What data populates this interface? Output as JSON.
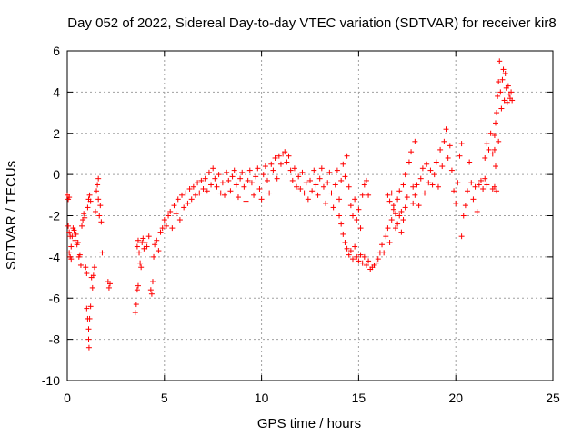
{
  "chart_data": {
    "type": "scatter",
    "title": "Day 052 of 2022, Sidereal Day-to-day VTEC variation (SDTVAR) for receiver kir8",
    "xlabel": "GPS time / hours",
    "ylabel": "SDTVAR / TECUs",
    "xlim": [
      0,
      25
    ],
    "ylim": [
      -10,
      6
    ],
    "xticks": [
      0,
      5,
      10,
      15,
      20,
      25
    ],
    "yticks": [
      -10,
      -8,
      -6,
      -4,
      -2,
      0,
      2,
      4,
      6
    ],
    "xtick_labels": [
      "0",
      "5",
      "10",
      "15",
      "20",
      "25"
    ],
    "ytick_labels": [
      "-10",
      "-8",
      "-6",
      "-4",
      "-2",
      "0",
      "2",
      "4",
      "6"
    ],
    "grid": true,
    "marker": "+",
    "marker_color": "#ff0000",
    "series": [
      {
        "name": "SDTVAR",
        "points": [
          [
            0.0,
            -1.0
          ],
          [
            0.05,
            -1.2
          ],
          [
            0.1,
            -1.1
          ],
          [
            0.05,
            -2.5
          ],
          [
            0.1,
            -2.8
          ],
          [
            0.15,
            -3.0
          ],
          [
            0.2,
            -3.5
          ],
          [
            0.1,
            -3.8
          ],
          [
            0.15,
            -4.0
          ],
          [
            0.2,
            -4.1
          ],
          [
            0.25,
            -3.0
          ],
          [
            0.3,
            -2.6
          ],
          [
            0.35,
            -2.7
          ],
          [
            0.4,
            -3.2
          ],
          [
            0.45,
            -2.9
          ],
          [
            0.5,
            -3.4
          ],
          [
            0.55,
            -3.3
          ],
          [
            0.6,
            -4.0
          ],
          [
            0.65,
            -3.9
          ],
          [
            0.7,
            -4.4
          ],
          [
            0.75,
            -2.5
          ],
          [
            0.8,
            -2.2
          ],
          [
            0.85,
            -1.9
          ],
          [
            0.9,
            -2.1
          ],
          [
            0.95,
            -4.5
          ],
          [
            1.0,
            -4.8
          ],
          [
            1.0,
            -6.5
          ],
          [
            1.05,
            -7.0
          ],
          [
            1.1,
            -7.5
          ],
          [
            1.1,
            -8.0
          ],
          [
            1.12,
            -8.4
          ],
          [
            1.15,
            -7.0
          ],
          [
            1.2,
            -6.4
          ],
          [
            1.05,
            -1.6
          ],
          [
            1.1,
            -1.2
          ],
          [
            1.15,
            -1.0
          ],
          [
            1.2,
            -1.3
          ],
          [
            1.25,
            -5.0
          ],
          [
            1.3,
            -5.5
          ],
          [
            1.35,
            -4.9
          ],
          [
            1.4,
            -4.5
          ],
          [
            1.45,
            -1.8
          ],
          [
            1.5,
            -0.8
          ],
          [
            1.55,
            -0.5
          ],
          [
            1.6,
            -0.2
          ],
          [
            1.6,
            -1.2
          ],
          [
            1.65,
            -2.0
          ],
          [
            1.7,
            -1.5
          ],
          [
            1.75,
            -2.3
          ],
          [
            1.8,
            -3.8
          ],
          [
            2.1,
            -5.2
          ],
          [
            2.15,
            -5.5
          ],
          [
            2.2,
            -5.3
          ],
          [
            3.5,
            -6.7
          ],
          [
            3.55,
            -6.3
          ],
          [
            3.6,
            -5.6
          ],
          [
            3.65,
            -5.4
          ],
          [
            3.6,
            -3.5
          ],
          [
            3.65,
            -3.2
          ],
          [
            3.7,
            -3.8
          ],
          [
            3.75,
            -4.3
          ],
          [
            3.8,
            -4.5
          ],
          [
            3.85,
            -3.3
          ],
          [
            3.9,
            -3.1
          ],
          [
            3.95,
            -3.6
          ],
          [
            4.0,
            -3.3
          ],
          [
            4.1,
            -3.5
          ],
          [
            4.2,
            -3.0
          ],
          [
            4.3,
            -5.6
          ],
          [
            4.35,
            -5.8
          ],
          [
            4.4,
            -5.2
          ],
          [
            4.45,
            -4.0
          ],
          [
            4.5,
            -3.4
          ],
          [
            4.6,
            -3.2
          ],
          [
            4.7,
            -3.7
          ],
          [
            4.8,
            -2.8
          ],
          [
            4.9,
            -2.6
          ],
          [
            5.0,
            -2.2
          ],
          [
            5.1,
            -2.5
          ],
          [
            5.2,
            -2.0
          ],
          [
            5.3,
            -1.8
          ],
          [
            5.4,
            -2.6
          ],
          [
            5.5,
            -1.5
          ],
          [
            5.6,
            -1.9
          ],
          [
            5.7,
            -1.2
          ],
          [
            5.8,
            -2.2
          ],
          [
            5.9,
            -1.0
          ],
          [
            6.0,
            -1.6
          ],
          [
            6.1,
            -0.9
          ],
          [
            6.2,
            -1.4
          ],
          [
            6.3,
            -0.7
          ],
          [
            6.4,
            -1.2
          ],
          [
            6.5,
            -0.6
          ],
          [
            6.6,
            -1.0
          ],
          [
            6.7,
            -0.4
          ],
          [
            6.8,
            -0.9
          ],
          [
            6.9,
            -0.3
          ],
          [
            7.0,
            -0.7
          ],
          [
            7.1,
            -0.2
          ],
          [
            7.2,
            -0.8
          ],
          [
            7.3,
            0.1
          ],
          [
            7.4,
            -0.5
          ],
          [
            7.5,
            0.3
          ],
          [
            7.6,
            -0.2
          ],
          [
            7.7,
            -0.6
          ],
          [
            7.8,
            0.0
          ],
          [
            7.9,
            -0.9
          ],
          [
            8.0,
            -0.4
          ],
          [
            8.1,
            -1.0
          ],
          [
            8.2,
            0.1
          ],
          [
            8.3,
            -0.3
          ],
          [
            8.4,
            -0.8
          ],
          [
            8.5,
            -0.1
          ],
          [
            8.6,
            0.2
          ],
          [
            8.7,
            -0.5
          ],
          [
            8.8,
            -1.1
          ],
          [
            8.9,
            -0.2
          ],
          [
            9.0,
            0.1
          ],
          [
            9.1,
            -0.6
          ],
          [
            9.2,
            -1.3
          ],
          [
            9.3,
            -0.3
          ],
          [
            9.4,
            0.2
          ],
          [
            9.5,
            -0.4
          ],
          [
            9.6,
            -1.0
          ],
          [
            9.7,
            -0.1
          ],
          [
            9.8,
            0.3
          ],
          [
            9.9,
            -0.7
          ],
          [
            10.0,
            -1.2
          ],
          [
            10.1,
            0.0
          ],
          [
            10.2,
            0.4
          ],
          [
            10.3,
            -0.3
          ],
          [
            10.4,
            -0.9
          ],
          [
            10.5,
            0.5
          ],
          [
            10.6,
            0.2
          ],
          [
            10.7,
            0.8
          ],
          [
            10.8,
            -0.2
          ],
          [
            10.9,
            0.9
          ],
          [
            11.0,
            0.5
          ],
          [
            11.1,
            1.0
          ],
          [
            11.2,
            1.1
          ],
          [
            11.3,
            0.6
          ],
          [
            11.4,
            0.9
          ],
          [
            11.5,
            0.2
          ],
          [
            11.6,
            -0.3
          ],
          [
            11.7,
            0.3
          ],
          [
            11.8,
            -0.6
          ],
          [
            11.9,
            -0.1
          ],
          [
            12.0,
            -0.7
          ],
          [
            12.1,
            0.1
          ],
          [
            12.2,
            -0.9
          ],
          [
            12.3,
            -0.4
          ],
          [
            12.4,
            -1.2
          ],
          [
            12.5,
            -0.3
          ],
          [
            12.6,
            -0.8
          ],
          [
            12.7,
            0.2
          ],
          [
            12.8,
            -0.5
          ],
          [
            12.9,
            -1.0
          ],
          [
            13.0,
            -0.2
          ],
          [
            13.1,
            0.3
          ],
          [
            13.2,
            -0.6
          ],
          [
            13.3,
            -1.4
          ],
          [
            13.4,
            -0.4
          ],
          [
            13.5,
            0.1
          ],
          [
            13.6,
            -0.9
          ],
          [
            13.7,
            -1.6
          ],
          [
            13.8,
            -0.5
          ],
          [
            13.9,
            0.2
          ],
          [
            14.0,
            -1.2
          ],
          [
            14.1,
            -0.3
          ],
          [
            14.2,
            0.5
          ],
          [
            14.3,
            -0.1
          ],
          [
            14.4,
            0.9
          ],
          [
            14.5,
            -0.6
          ],
          [
            14.6,
            -1.5
          ],
          [
            14.7,
            -2.0
          ],
          [
            14.8,
            -1.2
          ],
          [
            14.9,
            -2.2
          ],
          [
            15.0,
            -1.7
          ],
          [
            15.1,
            -2.6
          ],
          [
            15.2,
            -1.0
          ],
          [
            15.3,
            -0.5
          ],
          [
            15.4,
            -0.3
          ],
          [
            15.5,
            -1.0
          ],
          [
            14.0,
            -2.0
          ],
          [
            14.1,
            -2.4
          ],
          [
            14.2,
            -2.9
          ],
          [
            14.3,
            -3.3
          ],
          [
            14.4,
            -3.6
          ],
          [
            14.5,
            -3.9
          ],
          [
            14.6,
            -3.7
          ],
          [
            14.7,
            -4.1
          ],
          [
            14.8,
            -3.5
          ],
          [
            14.9,
            -4.0
          ],
          [
            15.0,
            -4.2
          ],
          [
            15.1,
            -3.9
          ],
          [
            15.2,
            -4.3
          ],
          [
            15.3,
            -4.0
          ],
          [
            15.4,
            -4.4
          ],
          [
            15.5,
            -4.2
          ],
          [
            15.6,
            -4.6
          ],
          [
            15.7,
            -4.5
          ],
          [
            15.8,
            -4.4
          ],
          [
            15.9,
            -4.3
          ],
          [
            16.0,
            -4.1
          ],
          [
            16.1,
            -3.8
          ],
          [
            16.2,
            -3.4
          ],
          [
            16.3,
            -3.8
          ],
          [
            16.4,
            -3.0
          ],
          [
            16.5,
            -2.6
          ],
          [
            16.6,
            -3.3
          ],
          [
            16.7,
            -2.2
          ],
          [
            16.8,
            -1.7
          ],
          [
            16.9,
            -2.6
          ],
          [
            17.0,
            -1.2
          ],
          [
            17.1,
            -0.8
          ],
          [
            17.2,
            -1.8
          ],
          [
            17.3,
            -0.5
          ],
          [
            17.4,
            0.0
          ],
          [
            17.5,
            -1.1
          ],
          [
            17.6,
            0.6
          ],
          [
            17.7,
            1.1
          ],
          [
            17.8,
            -0.6
          ],
          [
            17.9,
            1.6
          ],
          [
            16.5,
            -1.0
          ],
          [
            16.6,
            -1.3
          ],
          [
            16.7,
            -0.9
          ],
          [
            16.8,
            -1.5
          ],
          [
            16.9,
            -1.9
          ],
          [
            17.0,
            -2.4
          ],
          [
            17.1,
            -2.0
          ],
          [
            17.2,
            -2.8
          ],
          [
            17.3,
            -2.2
          ],
          [
            17.4,
            -1.6
          ],
          [
            17.8,
            -1.4
          ],
          [
            17.9,
            -1.0
          ],
          [
            18.0,
            -0.5
          ],
          [
            18.1,
            -1.5
          ],
          [
            18.2,
            -0.2
          ],
          [
            18.3,
            0.3
          ],
          [
            18.4,
            -0.9
          ],
          [
            18.5,
            0.5
          ],
          [
            18.6,
            -0.4
          ],
          [
            18.7,
            0.2
          ],
          [
            18.8,
            -0.5
          ],
          [
            18.9,
            0.0
          ],
          [
            19.0,
            0.6
          ],
          [
            19.1,
            -0.6
          ],
          [
            19.2,
            1.2
          ],
          [
            19.3,
            0.4
          ],
          [
            19.4,
            1.6
          ],
          [
            19.5,
            2.2
          ],
          [
            19.6,
            0.8
          ],
          [
            19.7,
            1.4
          ],
          [
            19.8,
            0.2
          ],
          [
            19.9,
            -0.8
          ],
          [
            20.0,
            -1.4
          ],
          [
            20.1,
            -0.4
          ],
          [
            20.2,
            0.9
          ],
          [
            20.3,
            1.5
          ],
          [
            20.4,
            -2.0
          ],
          [
            20.5,
            -1.5
          ],
          [
            20.6,
            -0.8
          ],
          [
            20.7,
            0.6
          ],
          [
            20.3,
            -3.0
          ],
          [
            20.8,
            -0.4
          ],
          [
            20.9,
            -1.2
          ],
          [
            21.0,
            -0.6
          ],
          [
            21.1,
            -1.8
          ],
          [
            21.2,
            -0.5
          ],
          [
            21.3,
            -0.3
          ],
          [
            21.4,
            -0.7
          ],
          [
            21.5,
            -0.2
          ],
          [
            21.6,
            -0.5
          ],
          [
            21.5,
            0.8
          ],
          [
            21.6,
            1.5
          ],
          [
            21.7,
            1.2
          ],
          [
            21.8,
            2.0
          ],
          [
            21.9,
            1.0
          ],
          [
            22.0,
            1.9
          ],
          [
            22.05,
            2.5
          ],
          [
            22.1,
            3.0
          ],
          [
            22.15,
            3.8
          ],
          [
            22.2,
            4.5
          ],
          [
            22.25,
            5.5
          ],
          [
            22.3,
            4.0
          ],
          [
            22.35,
            3.2
          ],
          [
            22.4,
            4.6
          ],
          [
            22.45,
            5.1
          ],
          [
            22.5,
            3.6
          ],
          [
            22.55,
            4.9
          ],
          [
            22.6,
            4.2
          ],
          [
            22.65,
            3.5
          ],
          [
            22.7,
            4.3
          ],
          [
            22.75,
            3.9
          ],
          [
            22.8,
            3.7
          ],
          [
            22.85,
            4.0
          ],
          [
            22.9,
            3.6
          ],
          [
            22.0,
            -0.6
          ],
          [
            22.1,
            -0.8
          ],
          [
            21.9,
            -0.7
          ],
          [
            22.0,
            1.2
          ],
          [
            22.05,
            0.4
          ],
          [
            22.2,
            1.6
          ]
        ]
      }
    ]
  }
}
